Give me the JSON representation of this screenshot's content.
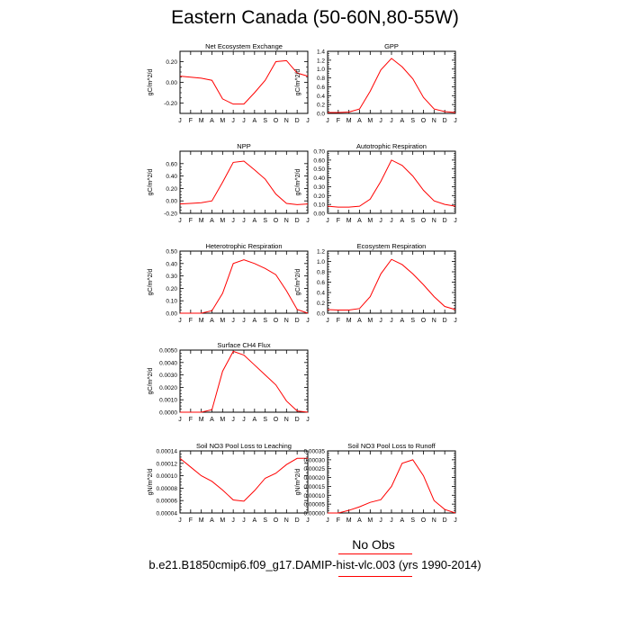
{
  "title": "Eastern Canada (50-60N,80-55W)",
  "legend_label": "No Obs",
  "case_label": "b.e21.B1850cmip6.f09_g17.DAMIP-hist-vlc.003 (yrs 1990-2014)",
  "series_color": "#ff0000",
  "chart_data": [
    {
      "type": "line",
      "title": "Net Ecosystem Exchange",
      "ylabel": "gC/m^2/d",
      "categories": [
        "J",
        "F",
        "M",
        "A",
        "M",
        "J",
        "J",
        "A",
        "S",
        "O",
        "N",
        "D",
        "J"
      ],
      "ylim": [
        -0.3,
        0.3
      ],
      "yticks": [
        -0.2,
        0.0,
        0.2
      ],
      "yticklabels": [
        "-0.20",
        "0.00",
        "0.20"
      ],
      "values": [
        0.06,
        0.05,
        0.04,
        0.02,
        -0.16,
        -0.21,
        -0.21,
        -0.1,
        0.02,
        0.2,
        0.21,
        0.09,
        0.06
      ]
    },
    {
      "type": "line",
      "title": "GPP",
      "ylabel": "gC/m^2/d",
      "categories": [
        "J",
        "F",
        "M",
        "A",
        "M",
        "J",
        "J",
        "A",
        "S",
        "O",
        "N",
        "D",
        "J"
      ],
      "ylim": [
        0,
        1.4
      ],
      "yticks": [
        0,
        0.2,
        0.4,
        0.6,
        0.8,
        1.0,
        1.2,
        1.4
      ],
      "yticklabels": [
        "0.0",
        "0.2",
        "0.4",
        "0.6",
        "0.8",
        "1.0",
        "1.2",
        "1.4"
      ],
      "values": [
        0.02,
        0.02,
        0.03,
        0.1,
        0.5,
        0.98,
        1.24,
        1.05,
        0.78,
        0.36,
        0.1,
        0.04,
        0.02
      ]
    },
    {
      "type": "line",
      "title": "NPP",
      "ylabel": "gC/m^2/d",
      "categories": [
        "J",
        "F",
        "M",
        "A",
        "M",
        "J",
        "J",
        "A",
        "S",
        "O",
        "N",
        "D",
        "J"
      ],
      "ylim": [
        -0.2,
        0.8
      ],
      "yticks": [
        -0.2,
        0.0,
        0.2,
        0.4,
        0.6
      ],
      "yticklabels": [
        "-0.20",
        "0.00",
        "0.20",
        "0.40",
        "0.60"
      ],
      "values": [
        -0.05,
        -0.04,
        -0.03,
        0.0,
        0.3,
        0.62,
        0.64,
        0.5,
        0.35,
        0.11,
        -0.04,
        -0.06,
        -0.05
      ]
    },
    {
      "type": "line",
      "title": "Autotrophic Respiration",
      "ylabel": "gC/m^2/d",
      "categories": [
        "J",
        "F",
        "M",
        "A",
        "M",
        "J",
        "J",
        "A",
        "S",
        "O",
        "N",
        "D",
        "J"
      ],
      "ylim": [
        0,
        0.7
      ],
      "yticks": [
        0,
        0.1,
        0.2,
        0.3,
        0.4,
        0.5,
        0.6,
        0.7
      ],
      "yticklabels": [
        "0.00",
        "0.10",
        "0.20",
        "0.30",
        "0.40",
        "0.50",
        "0.60",
        "0.70"
      ],
      "values": [
        0.08,
        0.07,
        0.07,
        0.08,
        0.16,
        0.36,
        0.6,
        0.54,
        0.42,
        0.26,
        0.14,
        0.1,
        0.08
      ]
    },
    {
      "type": "line",
      "title": "Heterotrophic Respiration",
      "ylabel": "gC/m^2/d",
      "categories": [
        "J",
        "F",
        "M",
        "A",
        "M",
        "J",
        "J",
        "A",
        "S",
        "O",
        "N",
        "D",
        "J"
      ],
      "ylim": [
        0,
        0.5
      ],
      "yticks": [
        0,
        0.1,
        0.2,
        0.3,
        0.4,
        0.5
      ],
      "yticklabels": [
        "0.00",
        "0.10",
        "0.20",
        "0.30",
        "0.40",
        "0.50"
      ],
      "values": [
        0.0,
        0.0,
        0.0,
        0.02,
        0.16,
        0.4,
        0.43,
        0.4,
        0.36,
        0.31,
        0.18,
        0.03,
        0.0
      ]
    },
    {
      "type": "line",
      "title": "Ecosystem Respiration",
      "ylabel": "gC/m^2/d",
      "categories": [
        "J",
        "F",
        "M",
        "A",
        "M",
        "J",
        "J",
        "A",
        "S",
        "O",
        "N",
        "D",
        "J"
      ],
      "ylim": [
        0,
        1.2
      ],
      "yticks": [
        0,
        0.2,
        0.4,
        0.6,
        0.8,
        1.0,
        1.2
      ],
      "yticklabels": [
        "0.0",
        "0.2",
        "0.4",
        "0.6",
        "0.8",
        "1.0",
        "1.2"
      ],
      "values": [
        0.07,
        0.06,
        0.06,
        0.09,
        0.32,
        0.76,
        1.04,
        0.94,
        0.76,
        0.55,
        0.32,
        0.13,
        0.07
      ]
    },
    {
      "type": "line",
      "title": "Surface CH4 Flux",
      "ylabel": "gC/m^2/d",
      "categories": [
        "J",
        "F",
        "M",
        "A",
        "M",
        "J",
        "J",
        "A",
        "S",
        "O",
        "N",
        "D",
        "J"
      ],
      "ylim": [
        0,
        0.005
      ],
      "yticks": [
        0,
        0.001,
        0.002,
        0.003,
        0.004,
        0.005
      ],
      "yticklabels": [
        "0.0000",
        "0.0010",
        "0.0020",
        "0.0030",
        "0.0040",
        "0.0050"
      ],
      "values": [
        0.0,
        0.0,
        0.0,
        0.0002,
        0.0033,
        0.0049,
        0.0046,
        0.0038,
        0.003,
        0.0022,
        0.0009,
        0.0001,
        0.0
      ]
    },
    {
      "type": "line",
      "title": "Soil NO3 Pool Loss to Leaching",
      "ylabel": "gN/m^2/d",
      "categories": [
        "J",
        "F",
        "M",
        "A",
        "M",
        "J",
        "J",
        "A",
        "S",
        "O",
        "N",
        "D",
        "J"
      ],
      "ylim": [
        4e-05,
        0.00014
      ],
      "yticks": [
        4e-05,
        6e-05,
        8e-05,
        0.0001,
        0.00012,
        0.00014
      ],
      "yticklabels": [
        "0.00004",
        "0.00006",
        "0.00008",
        "0.00010",
        "0.00012",
        "0.00014"
      ],
      "values": [
        0.000128,
        0.000114,
        0.0001,
        9.1e-05,
        7.7e-05,
        6.1e-05,
        5.9e-05,
        7.6e-05,
        9.6e-05,
        0.000104,
        0.000118,
        0.000128,
        0.000128
      ]
    },
    {
      "type": "line",
      "title": "Soil NO3 Pool Loss to Runoff",
      "ylabel": "gN/m^2/d",
      "categories": [
        "J",
        "F",
        "M",
        "A",
        "M",
        "J",
        "J",
        "A",
        "S",
        "O",
        "N",
        "D",
        "J"
      ],
      "ylim": [
        0,
        0.00035
      ],
      "yticks": [
        0,
        5e-05,
        0.0001,
        0.00015,
        0.0002,
        0.00025,
        0.0003,
        0.00035
      ],
      "yticklabels": [
        "0.00000",
        "0.00005",
        "0.00010",
        "0.00015",
        "0.00020",
        "0.00025",
        "0.00030",
        "0.00035"
      ],
      "values": [
        0.0,
        0.0,
        1.5e-05,
        3.5e-05,
        6e-05,
        7.5e-05,
        0.00015,
        0.00028,
        0.0003,
        0.00021,
        7e-05,
        2e-05,
        0.0
      ]
    }
  ]
}
